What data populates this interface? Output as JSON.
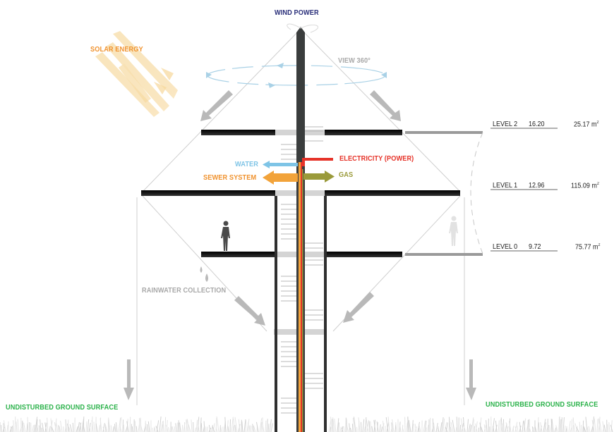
{
  "labels": {
    "wind_power": "WIND POWER",
    "solar_energy": "SOLAR ENERGY",
    "view_360": "VIEW 360°",
    "water": "WATER",
    "electricity": "ELECTRICITY (POWER)",
    "sewer_system": "SEWER SYSTEM",
    "gas": "GAS",
    "rainwater_collection": "RAINWATER COLLECTION",
    "ground_left": "UNDISTURBED GROUND SURFACE",
    "ground_right": "UNDISTURBED GROUND SURFACE"
  },
  "levels": [
    {
      "name": "LEVEL 2",
      "height": "16.20",
      "area": "25.17 m",
      "unit_sup": "2"
    },
    {
      "name": "LEVEL 1",
      "height": "12.96",
      "area": "115.09 m",
      "unit_sup": "2"
    },
    {
      "name": "LEVEL 0",
      "height": "9.72",
      "area": "75.77 m",
      "unit_sup": "2"
    }
  ],
  "colors": {
    "wind": "#2a2f7a",
    "solar": "#f0922e",
    "view": "#a8a8a8",
    "water": "#7ec4e6",
    "electricity": "#e63329",
    "sewer": "#f2a33a",
    "gas": "#9a9a3a",
    "rain": "#a8a8a8",
    "ground": "#2bb24a"
  }
}
